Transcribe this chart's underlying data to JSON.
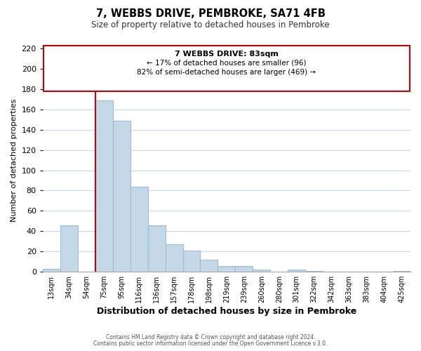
{
  "title": "7, WEBBS DRIVE, PEMBROKE, SA71 4FB",
  "subtitle": "Size of property relative to detached houses in Pembroke",
  "xlabel": "Distribution of detached houses by size in Pembroke",
  "ylabel": "Number of detached properties",
  "bar_labels": [
    "13sqm",
    "34sqm",
    "54sqm",
    "75sqm",
    "95sqm",
    "116sqm",
    "136sqm",
    "157sqm",
    "178sqm",
    "198sqm",
    "219sqm",
    "239sqm",
    "260sqm",
    "280sqm",
    "301sqm",
    "322sqm",
    "342sqm",
    "363sqm",
    "383sqm",
    "404sqm",
    "425sqm"
  ],
  "bar_values": [
    3,
    46,
    0,
    169,
    149,
    84,
    46,
    27,
    21,
    12,
    6,
    6,
    2,
    0,
    2,
    1,
    0,
    0,
    0,
    0,
    1
  ],
  "bar_color": "#c5d8ea",
  "bar_edge_color": "#9bbdd4",
  "vline_color": "#cc0000",
  "vline_x_index": 3,
  "annotation_title": "7 WEBBS DRIVE: 83sqm",
  "annotation_line1": "← 17% of detached houses are smaller (96)",
  "annotation_line2": "82% of semi-detached houses are larger (469) →",
  "annotation_box_color": "#ffffff",
  "annotation_box_edge": "#cc0000",
  "ylim": [
    0,
    220
  ],
  "yticks": [
    0,
    20,
    40,
    60,
    80,
    100,
    120,
    140,
    160,
    180,
    200,
    220
  ],
  "footer1": "Contains HM Land Registry data © Crown copyright and database right 2024.",
  "footer2": "Contains public sector information licensed under the Open Government Licence v.3.0.",
  "bg_color": "#ffffff",
  "grid_color": "#c8d8e8"
}
